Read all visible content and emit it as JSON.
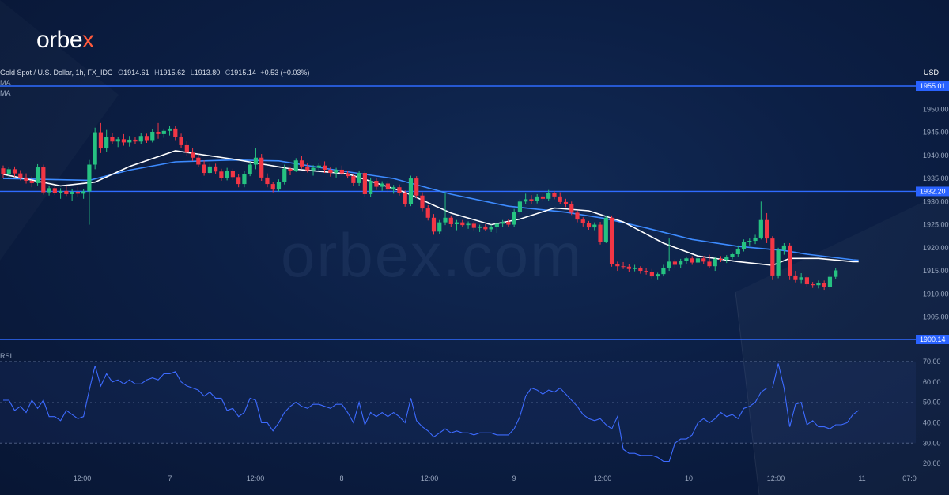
{
  "brand": {
    "logo_text": "orbe",
    "logo_accent": "x",
    "watermark": "orbex.com"
  },
  "header": {
    "symbol": "Gold Spot / U.S. Dollar, 1h, FX_IDC",
    "open_label": "O",
    "open": "1914.61",
    "high_label": "H",
    "high": "1915.62",
    "low_label": "L",
    "low": "1913.80",
    "close_label": "C",
    "close": "1915.14",
    "change": "+0.53 (+0.03%)",
    "ma1_label": "MA",
    "ma2_label": "MA",
    "rsi_label": "RSI",
    "currency": "USD"
  },
  "colors": {
    "up": "#26c281",
    "down": "#f23645",
    "ma_fast": "#ffffff",
    "ma_slow": "#3d8bff",
    "hline": "#2f6bff",
    "rsi": "#3d6bff"
  },
  "chart_data": [
    {
      "type": "candlestick",
      "price_axis": {
        "min": 1900,
        "max": 1955,
        "ticks": [
          1905,
          1910,
          1915,
          1920,
          1925,
          1930,
          1935,
          1940,
          1945,
          1950
        ]
      },
      "time_labels": [
        "12:00",
        "7",
        "12:00",
        "8",
        "12:00",
        "9",
        "12:00",
        "10",
        "12:00",
        "11",
        "07:0"
      ],
      "horizontal_levels": [
        {
          "value": 1955.01,
          "label": "1955.01"
        },
        {
          "value": 1932.2,
          "label": "1932.20"
        },
        {
          "value": 1900.14,
          "label": "1900.14"
        }
      ],
      "candles": [
        [
          1937.2,
          1937.8,
          1935.0,
          1936.0
        ],
        [
          1936.0,
          1937.5,
          1935.2,
          1937.0
        ],
        [
          1937.0,
          1937.6,
          1935.4,
          1936.1
        ],
        [
          1936.1,
          1936.8,
          1934.6,
          1935.2
        ],
        [
          1935.2,
          1936.1,
          1933.9,
          1934.5
        ],
        [
          1934.5,
          1935.4,
          1933.1,
          1934.0
        ],
        [
          1934.0,
          1938.1,
          1933.5,
          1937.4
        ],
        [
          1937.4,
          1938.0,
          1931.5,
          1932.0
        ],
        [
          1932.0,
          1933.4,
          1931.3,
          1932.9
        ],
        [
          1932.9,
          1933.5,
          1931.4,
          1931.8
        ],
        [
          1931.8,
          1932.9,
          1930.6,
          1932.3
        ],
        [
          1932.3,
          1933.5,
          1931.2,
          1931.6
        ],
        [
          1931.6,
          1932.8,
          1930.1,
          1932.1
        ],
        [
          1932.1,
          1933.2,
          1931.0,
          1931.7
        ],
        [
          1931.7,
          1932.7,
          1930.6,
          1932.2
        ],
        [
          1932.2,
          1939.0,
          1925.0,
          1938.0
        ],
        [
          1938.0,
          1946.0,
          1937.0,
          1945.0
        ],
        [
          1945.0,
          1947.0,
          1940.5,
          1941.5
        ],
        [
          1941.5,
          1945.5,
          1940.7,
          1944.0
        ],
        [
          1944.0,
          1944.9,
          1942.5,
          1943.0
        ],
        [
          1943.0,
          1943.9,
          1941.8,
          1943.5
        ],
        [
          1943.5,
          1944.6,
          1942.1,
          1942.8
        ],
        [
          1942.8,
          1944.2,
          1941.9,
          1943.4
        ],
        [
          1943.4,
          1944.0,
          1942.4,
          1943.0
        ],
        [
          1943.0,
          1944.8,
          1942.4,
          1944.2
        ],
        [
          1944.2,
          1944.7,
          1942.7,
          1943.3
        ],
        [
          1943.3,
          1945.7,
          1942.8,
          1945.1
        ],
        [
          1945.1,
          1947.0,
          1943.6,
          1944.6
        ],
        [
          1944.6,
          1945.8,
          1943.8,
          1945.3
        ],
        [
          1945.3,
          1946.4,
          1944.3,
          1945.8
        ],
        [
          1945.8,
          1946.3,
          1943.3,
          1943.9
        ],
        [
          1943.9,
          1944.7,
          1941.6,
          1942.2
        ],
        [
          1942.2,
          1943.1,
          1940.0,
          1940.6
        ],
        [
          1940.6,
          1941.6,
          1938.8,
          1939.5
        ],
        [
          1939.5,
          1940.3,
          1937.4,
          1938.0
        ],
        [
          1938.0,
          1938.9,
          1935.6,
          1936.2
        ],
        [
          1936.2,
          1938.2,
          1935.8,
          1937.6
        ],
        [
          1937.6,
          1938.2,
          1935.9,
          1936.5
        ],
        [
          1936.5,
          1937.1,
          1934.5,
          1935.1
        ],
        [
          1935.1,
          1937.3,
          1934.6,
          1936.6
        ],
        [
          1936.6,
          1937.1,
          1934.7,
          1935.3
        ],
        [
          1935.3,
          1935.9,
          1933.1,
          1933.8
        ],
        [
          1933.8,
          1936.6,
          1933.1,
          1936.0
        ],
        [
          1936.0,
          1938.6,
          1935.5,
          1938.0
        ],
        [
          1938.0,
          1941.5,
          1937.0,
          1939.5
        ],
        [
          1939.5,
          1940.3,
          1934.5,
          1935.2
        ],
        [
          1935.2,
          1936.1,
          1933.1,
          1933.8
        ],
        [
          1933.8,
          1934.2,
          1932.0,
          1932.6
        ],
        [
          1932.6,
          1934.8,
          1932.2,
          1934.2
        ],
        [
          1934.2,
          1938.0,
          1933.7,
          1937.1
        ],
        [
          1937.1,
          1937.5,
          1935.7,
          1936.6
        ],
        [
          1936.6,
          1939.4,
          1936.4,
          1938.9
        ],
        [
          1938.9,
          1939.9,
          1937.1,
          1937.6
        ],
        [
          1937.6,
          1938.4,
          1936.3,
          1936.8
        ],
        [
          1936.8,
          1937.9,
          1935.6,
          1937.3
        ],
        [
          1937.3,
          1938.4,
          1936.6,
          1937.8
        ],
        [
          1937.8,
          1938.7,
          1936.2,
          1936.9
        ],
        [
          1936.9,
          1937.4,
          1935.4,
          1936.2
        ],
        [
          1936.2,
          1937.3,
          1935.2,
          1936.9
        ],
        [
          1936.9,
          1937.8,
          1935.7,
          1936.1
        ],
        [
          1936.1,
          1936.6,
          1935.0,
          1935.5
        ],
        [
          1935.5,
          1936.0,
          1933.4,
          1934.0
        ],
        [
          1934.0,
          1936.7,
          1933.4,
          1936.2
        ],
        [
          1936.2,
          1936.7,
          1931.0,
          1931.6
        ],
        [
          1931.6,
          1935.2,
          1931.0,
          1934.5
        ],
        [
          1934.5,
          1935.0,
          1932.5,
          1933.2
        ],
        [
          1933.2,
          1934.4,
          1932.3,
          1933.9
        ],
        [
          1933.9,
          1934.5,
          1932.0,
          1932.6
        ],
        [
          1932.6,
          1933.6,
          1931.7,
          1933.1
        ],
        [
          1933.1,
          1933.7,
          1931.3,
          1931.9
        ],
        [
          1931.9,
          1932.4,
          1928.9,
          1929.4
        ],
        [
          1929.4,
          1935.6,
          1929.0,
          1935.0
        ],
        [
          1935.0,
          1935.5,
          1930.7,
          1931.3
        ],
        [
          1931.3,
          1932.0,
          1927.9,
          1928.5
        ],
        [
          1928.5,
          1929.2,
          1925.9,
          1926.5
        ],
        [
          1926.5,
          1927.3,
          1922.8,
          1923.5
        ],
        [
          1923.5,
          1926.0,
          1923.0,
          1925.5
        ],
        [
          1925.5,
          1932.0,
          1924.9,
          1926.5
        ],
        [
          1926.5,
          1927.0,
          1924.5,
          1925.1
        ],
        [
          1925.1,
          1926.0,
          1923.8,
          1925.5
        ],
        [
          1925.5,
          1926.0,
          1924.5,
          1924.9
        ],
        [
          1924.9,
          1925.7,
          1924.1,
          1925.2
        ],
        [
          1925.2,
          1925.7,
          1923.8,
          1924.3
        ],
        [
          1924.3,
          1925.0,
          1923.4,
          1924.6
        ],
        [
          1924.6,
          1925.1,
          1923.6,
          1924.0
        ],
        [
          1924.0,
          1925.0,
          1923.4,
          1924.5
        ],
        [
          1924.5,
          1925.0,
          1923.2,
          1925.2
        ],
        [
          1925.2,
          1926.0,
          1924.5,
          1925.6
        ],
        [
          1925.6,
          1926.2,
          1924.6,
          1925.0
        ],
        [
          1925.0,
          1928.4,
          1924.5,
          1927.8
        ],
        [
          1927.8,
          1930.5,
          1927.3,
          1930.0
        ],
        [
          1930.0,
          1931.7,
          1929.5,
          1930.5
        ],
        [
          1930.5,
          1931.4,
          1929.5,
          1930.2
        ],
        [
          1930.2,
          1931.6,
          1929.6,
          1931.1
        ],
        [
          1931.1,
          1931.7,
          1930.0,
          1930.6
        ],
        [
          1930.6,
          1932.5,
          1930.2,
          1931.8
        ],
        [
          1931.8,
          1932.3,
          1930.5,
          1931.1
        ],
        [
          1931.1,
          1932.0,
          1929.4,
          1929.9
        ],
        [
          1929.9,
          1930.6,
          1928.8,
          1929.5
        ],
        [
          1929.5,
          1930.0,
          1927.1,
          1927.6
        ],
        [
          1927.6,
          1928.1,
          1925.5,
          1926.1
        ],
        [
          1926.1,
          1926.6,
          1924.6,
          1925.3
        ],
        [
          1925.3,
          1925.8,
          1923.9,
          1924.4
        ],
        [
          1924.4,
          1925.5,
          1923.8,
          1925.0
        ],
        [
          1925.0,
          1925.6,
          1920.7,
          1921.2
        ],
        [
          1921.2,
          1927.0,
          1921.0,
          1926.5
        ],
        [
          1926.5,
          1927.0,
          1915.9,
          1916.5
        ],
        [
          1916.5,
          1917.0,
          1915.0,
          1916.0
        ],
        [
          1916.0,
          1916.9,
          1915.4,
          1915.9
        ],
        [
          1915.9,
          1916.5,
          1914.8,
          1915.4
        ],
        [
          1915.4,
          1916.3,
          1914.9,
          1915.7
        ],
        [
          1915.7,
          1916.0,
          1914.4,
          1915.0
        ],
        [
          1915.0,
          1915.6,
          1914.2,
          1914.8
        ],
        [
          1914.8,
          1915.4,
          1913.3,
          1913.8
        ],
        [
          1913.8,
          1914.6,
          1913.0,
          1914.3
        ],
        [
          1914.3,
          1916.3,
          1913.8,
          1915.7
        ],
        [
          1915.7,
          1922.0,
          1915.0,
          1917.0
        ],
        [
          1917.0,
          1917.5,
          1915.7,
          1916.3
        ],
        [
          1916.3,
          1917.6,
          1915.6,
          1917.1
        ],
        [
          1917.1,
          1918.1,
          1916.4,
          1917.7
        ],
        [
          1917.7,
          1918.2,
          1916.3,
          1916.8
        ],
        [
          1916.8,
          1918.1,
          1916.4,
          1917.7
        ],
        [
          1917.7,
          1918.2,
          1916.5,
          1917.0
        ],
        [
          1917.0,
          1918.5,
          1915.6,
          1916.0
        ],
        [
          1916.0,
          1918.0,
          1915.0,
          1917.6
        ],
        [
          1917.6,
          1918.2,
          1916.9,
          1917.4
        ],
        [
          1917.4,
          1918.4,
          1916.7,
          1918.0
        ],
        [
          1918.0,
          1919.0,
          1917.5,
          1918.6
        ],
        [
          1918.6,
          1920.5,
          1918.1,
          1919.8
        ],
        [
          1919.8,
          1921.8,
          1919.2,
          1921.2
        ],
        [
          1921.2,
          1922.0,
          1920.5,
          1921.5
        ],
        [
          1921.5,
          1922.8,
          1920.8,
          1922.2
        ],
        [
          1922.2,
          1930.0,
          1921.8,
          1926.0
        ],
        [
          1926.0,
          1927.5,
          1921.0,
          1922.0
        ],
        [
          1922.0,
          1922.5,
          1913.0,
          1914.0
        ],
        [
          1914.0,
          1920.0,
          1913.4,
          1919.5
        ],
        [
          1919.5,
          1921.0,
          1918.5,
          1920.5
        ],
        [
          1920.5,
          1921.0,
          1913.0,
          1914.0
        ],
        [
          1914.0,
          1915.0,
          1912.5,
          1913.0
        ],
        [
          1913.0,
          1914.5,
          1912.2,
          1913.6
        ],
        [
          1913.6,
          1914.0,
          1911.6,
          1912.1
        ],
        [
          1912.1,
          1912.6,
          1911.3,
          1911.9
        ],
        [
          1911.9,
          1912.9,
          1911.2,
          1912.4
        ],
        [
          1912.4,
          1912.9,
          1910.9,
          1911.5
        ],
        [
          1911.5,
          1914.3,
          1911.0,
          1913.7
        ],
        [
          1913.7,
          1915.6,
          1913.2,
          1915.1
        ]
      ],
      "ma_fast": [
        [
          0,
          1935.9
        ],
        [
          10,
          1933.4
        ],
        [
          16,
          1934.2
        ],
        [
          22,
          1937.6
        ],
        [
          30,
          1941.0
        ],
        [
          40,
          1939.2
        ],
        [
          50,
          1937.1
        ],
        [
          60,
          1936.0
        ],
        [
          70,
          1932.0
        ],
        [
          78,
          1927.5
        ],
        [
          85,
          1925.0
        ],
        [
          90,
          1926.2
        ],
        [
          96,
          1928.6
        ],
        [
          102,
          1928.0
        ],
        [
          108,
          1925.6
        ],
        [
          115,
          1921.0
        ],
        [
          121,
          1918.2
        ],
        [
          128,
          1917.0
        ],
        [
          134,
          1916.2
        ],
        [
          137,
          1917.7
        ],
        [
          142,
          1917.7
        ],
        [
          148,
          1917.0
        ],
        [
          149,
          1917.0
        ]
      ],
      "ma_slow": [
        [
          0,
          1935.0
        ],
        [
          15,
          1934.6
        ],
        [
          22,
          1936.8
        ],
        [
          30,
          1938.6
        ],
        [
          40,
          1939.0
        ],
        [
          48,
          1938.8
        ],
        [
          58,
          1936.8
        ],
        [
          68,
          1935.0
        ],
        [
          78,
          1931.6
        ],
        [
          88,
          1929.0
        ],
        [
          98,
          1927.7
        ],
        [
          105,
          1926.3
        ],
        [
          112,
          1924.3
        ],
        [
          120,
          1921.8
        ],
        [
          128,
          1920.3
        ],
        [
          136,
          1919.4
        ],
        [
          140,
          1918.6
        ],
        [
          148,
          1917.4
        ],
        [
          149,
          1917.3
        ]
      ],
      "horizontal_lines_note": ""
    },
    {
      "type": "line",
      "name": "RSI",
      "ylim": [
        15,
        75
      ],
      "yticks": [
        20,
        30,
        40,
        50,
        60,
        70
      ],
      "bands": [
        30,
        70
      ],
      "values": [
        51,
        51,
        46,
        48,
        45,
        51,
        47,
        51,
        43,
        43,
        41,
        46,
        44,
        42,
        43,
        56,
        68,
        58,
        64,
        60,
        61,
        59,
        61,
        59,
        59,
        61,
        62,
        61,
        64,
        64,
        65,
        60,
        58,
        57,
        56,
        53,
        55,
        52,
        52,
        46,
        47,
        43,
        45,
        52,
        51,
        40,
        40,
        36,
        40,
        45,
        48,
        50,
        48,
        47,
        49,
        49,
        48,
        47,
        49,
        49,
        45,
        40,
        50,
        39,
        45,
        43,
        45,
        43,
        45,
        43,
        40,
        52,
        41,
        38,
        36,
        33,
        35,
        37,
        35,
        36,
        35,
        35,
        34,
        35,
        35,
        35,
        34,
        34,
        34,
        37,
        43,
        53,
        57,
        56,
        54,
        56,
        55,
        57,
        54,
        51,
        48,
        44,
        42,
        41,
        42,
        39,
        37,
        43,
        27,
        25,
        25,
        24,
        24,
        24,
        23,
        21,
        21,
        30,
        32,
        32,
        34,
        40,
        42,
        40,
        42,
        45,
        43,
        44,
        42,
        47,
        48,
        50,
        55,
        57,
        57,
        69,
        57,
        38,
        49,
        50,
        39,
        41,
        38,
        38,
        37,
        39,
        39,
        40,
        44,
        46
      ]
    }
  ]
}
